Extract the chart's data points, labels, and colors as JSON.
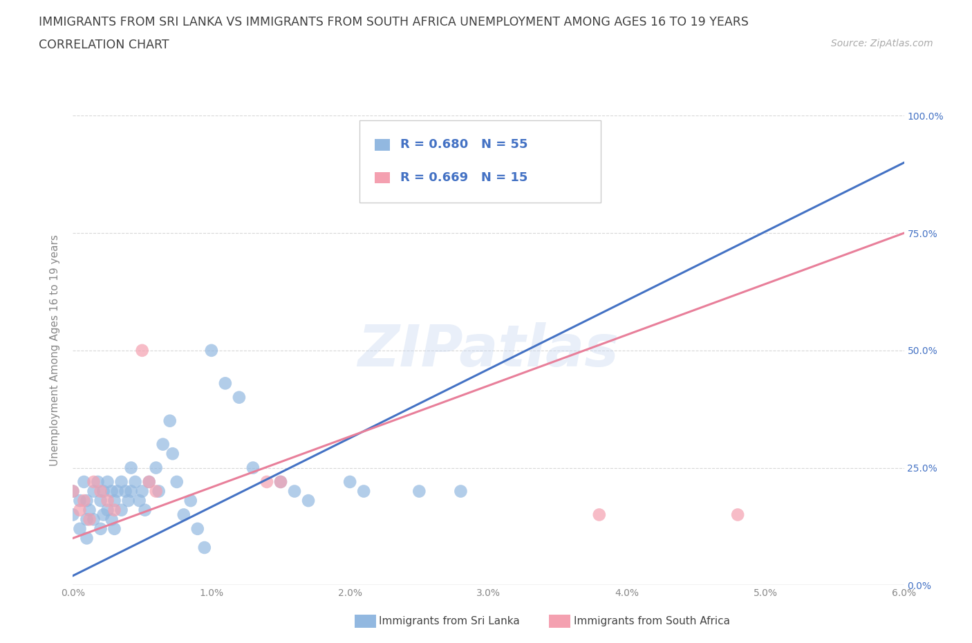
{
  "title_line1": "IMMIGRANTS FROM SRI LANKA VS IMMIGRANTS FROM SOUTH AFRICA UNEMPLOYMENT AMONG AGES 16 TO 19 YEARS",
  "title_line2": "CORRELATION CHART",
  "source_text": "Source: ZipAtlas.com",
  "xlabel_vals": [
    0.0,
    1.0,
    2.0,
    3.0,
    4.0,
    5.0,
    6.0
  ],
  "ylabel_vals": [
    0.0,
    25.0,
    50.0,
    75.0,
    100.0
  ],
  "ylabel_label": "Unemployment Among Ages 16 to 19 years",
  "xlim": [
    0.0,
    6.0
  ],
  "ylim": [
    0.0,
    100.0
  ],
  "watermark": "ZIPatlas",
  "sri_lanka_x": [
    0.0,
    0.0,
    0.05,
    0.05,
    0.08,
    0.1,
    0.1,
    0.1,
    0.12,
    0.15,
    0.15,
    0.18,
    0.2,
    0.2,
    0.22,
    0.22,
    0.25,
    0.25,
    0.28,
    0.28,
    0.3,
    0.3,
    0.32,
    0.35,
    0.35,
    0.38,
    0.4,
    0.42,
    0.42,
    0.45,
    0.48,
    0.5,
    0.52,
    0.55,
    0.6,
    0.62,
    0.65,
    0.7,
    0.72,
    0.75,
    0.8,
    0.85,
    0.9,
    0.95,
    1.0,
    1.1,
    1.2,
    1.3,
    1.5,
    1.6,
    1.7,
    2.0,
    2.1,
    2.5,
    2.8
  ],
  "sri_lanka_y": [
    20.0,
    15.0,
    18.0,
    12.0,
    22.0,
    18.0,
    14.0,
    10.0,
    16.0,
    20.0,
    14.0,
    22.0,
    18.0,
    12.0,
    20.0,
    15.0,
    22.0,
    16.0,
    20.0,
    14.0,
    18.0,
    12.0,
    20.0,
    22.0,
    16.0,
    20.0,
    18.0,
    25.0,
    20.0,
    22.0,
    18.0,
    20.0,
    16.0,
    22.0,
    25.0,
    20.0,
    30.0,
    35.0,
    28.0,
    22.0,
    15.0,
    18.0,
    12.0,
    8.0,
    50.0,
    43.0,
    40.0,
    25.0,
    22.0,
    20.0,
    18.0,
    22.0,
    20.0,
    20.0,
    20.0
  ],
  "south_africa_x": [
    0.0,
    0.05,
    0.08,
    0.12,
    0.15,
    0.2,
    0.25,
    0.3,
    0.5,
    0.55,
    0.6,
    1.4,
    1.5,
    3.8,
    4.8
  ],
  "south_africa_y": [
    20.0,
    16.0,
    18.0,
    14.0,
    22.0,
    20.0,
    18.0,
    16.0,
    50.0,
    22.0,
    20.0,
    22.0,
    22.0,
    15.0,
    15.0
  ],
  "sri_lanka_color": "#92b8e0",
  "south_africa_color": "#f4a0b0",
  "sri_lanka_line_color": "#4472c4",
  "south_africa_line_color": "#e87f9a",
  "sri_lanka_R": 0.68,
  "sri_lanka_N": 55,
  "south_africa_R": 0.669,
  "south_africa_N": 15,
  "legend_text_color": "#4472c4",
  "background_color": "#ffffff",
  "grid_color": "#d8d8d8",
  "title_color": "#404040",
  "watermark_color": "#c8d8f0",
  "sl_line_x0": 0.0,
  "sl_line_y0": 2.0,
  "sl_line_x1": 6.0,
  "sl_line_y1": 90.0,
  "sa_line_x0": 0.0,
  "sa_line_y0": 10.0,
  "sa_line_x1": 6.0,
  "sa_line_y1": 75.0
}
